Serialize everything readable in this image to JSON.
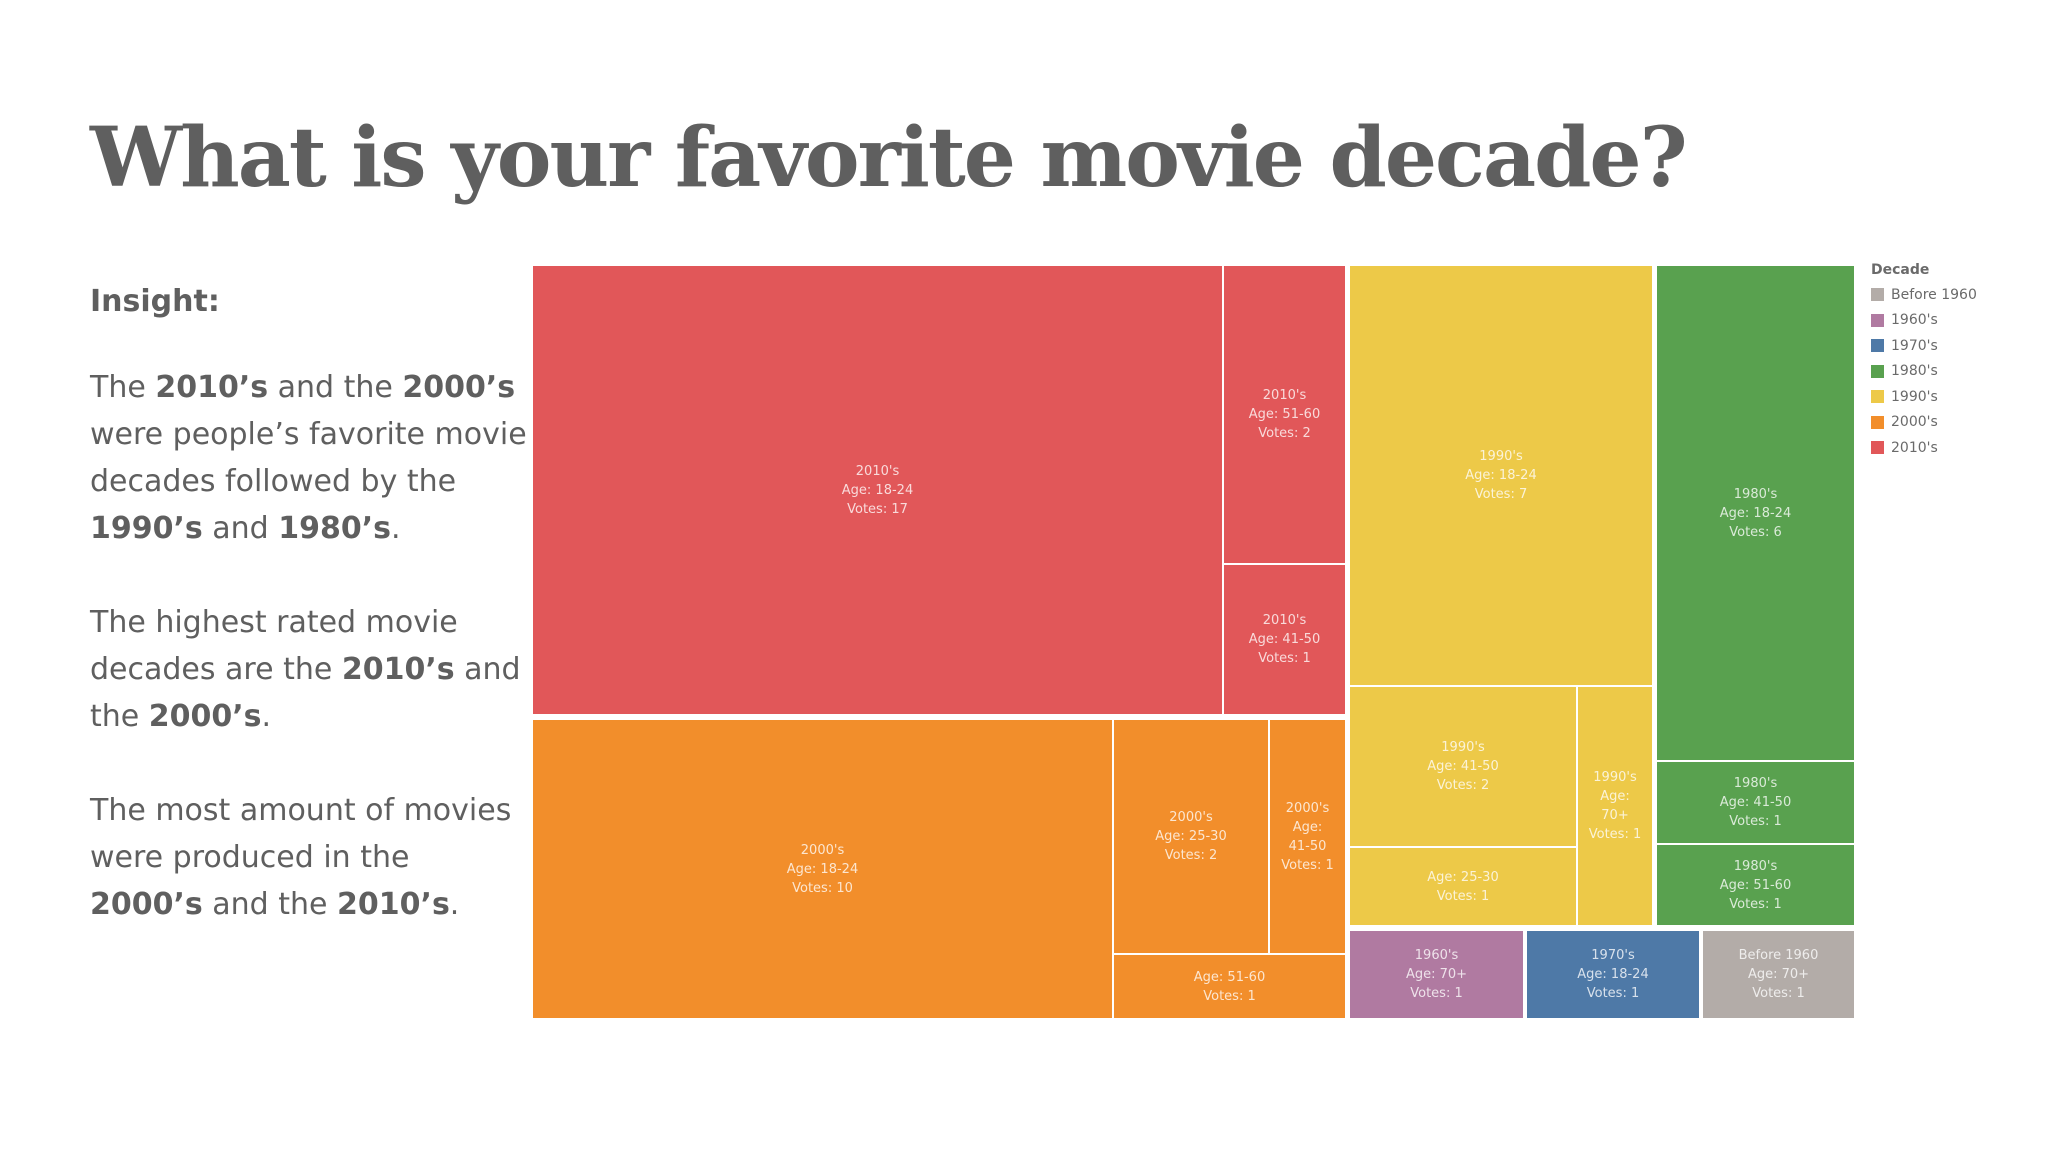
{
  "title": "What is your favorite movie decade?",
  "insight": {
    "heading": "Insight:",
    "paragraphs": [
      [
        {
          "t": "The ",
          "b": false
        },
        {
          "t": "2010’s",
          "b": true
        },
        {
          "t": " and the ",
          "b": false
        },
        {
          "t": "2000’s",
          "b": true
        },
        {
          "t": " were people’s favorite movie decades followed by the ",
          "b": false
        },
        {
          "t": "1990’s",
          "b": true
        },
        {
          "t": " and ",
          "b": false
        },
        {
          "t": "1980’s",
          "b": true
        },
        {
          "t": ".",
          "b": false
        }
      ],
      [
        {
          "t": "The highest rated movie decades are the ",
          "b": false
        },
        {
          "t": "2010’s",
          "b": true
        },
        {
          "t": " and the ",
          "b": false
        },
        {
          "t": "2000’s",
          "b": true
        },
        {
          "t": ".",
          "b": false
        }
      ],
      [
        {
          "t": "The most amount of movies were produced in the ",
          "b": false
        },
        {
          "t": "2000’s",
          "b": true
        },
        {
          "t": " and the ",
          "b": false
        },
        {
          "t": "2010’s",
          "b": true
        },
        {
          "t": ".",
          "b": false
        }
      ]
    ]
  },
  "legend": {
    "title": "Decade",
    "items": [
      {
        "label": "Before 1960",
        "color": "#b3aca8"
      },
      {
        "label": "1960's",
        "color": "#b07aa1"
      },
      {
        "label": "1970's",
        "color": "#4e79a7"
      },
      {
        "label": "1980's",
        "color": "#59a14f"
      },
      {
        "label": "1990's",
        "color": "#edc948"
      },
      {
        "label": "2000's",
        "color": "#f28e2b"
      },
      {
        "label": "2010's",
        "color": "#e15759"
      }
    ]
  },
  "chart_data": {
    "type": "treemap",
    "title": "What is your favorite movie decade?",
    "size_measure": "Votes",
    "series": [
      {
        "name": "2010's",
        "children": [
          {
            "lines": [
              "2010's",
              "Age: 18-24",
              "Votes: 17"
            ],
            "decade": "2010's",
            "age": "18-24",
            "votes": 17
          },
          {
            "lines": [
              "2010's",
              "Age: 51-60",
              "Votes: 2"
            ],
            "decade": "2010's",
            "age": "51-60",
            "votes": 2
          },
          {
            "lines": [
              "2010's",
              "Age: 41-50",
              "Votes: 1"
            ],
            "decade": "2010's",
            "age": "41-50",
            "votes": 1
          }
        ]
      },
      {
        "name": "2000's",
        "children": [
          {
            "lines": [
              "2000's",
              "Age: 18-24",
              "Votes: 10"
            ],
            "decade": "2000's",
            "age": "18-24",
            "votes": 10
          },
          {
            "lines": [
              "2000's",
              "Age: 25-30",
              "Votes: 2"
            ],
            "decade": "2000's",
            "age": "25-30",
            "votes": 2
          },
          {
            "lines": [
              "2000's",
              "Age:",
              "41-50",
              "Votes: 1"
            ],
            "decade": "2000's",
            "age": "41-50",
            "votes": 1
          },
          {
            "lines": [
              "Age: 51-60",
              "Votes: 1"
            ],
            "decade": "2000's",
            "age": "51-60",
            "votes": 1
          }
        ]
      },
      {
        "name": "1990's",
        "children": [
          {
            "lines": [
              "1990's",
              "Age: 18-24",
              "Votes: 7"
            ],
            "decade": "1990's",
            "age": "18-24",
            "votes": 7
          },
          {
            "lines": [
              "1990's",
              "Age: 41-50",
              "Votes: 2"
            ],
            "decade": "1990's",
            "age": "41-50",
            "votes": 2
          },
          {
            "lines": [
              "1990's",
              "Age:",
              "70+",
              "Votes: 1"
            ],
            "decade": "1990's",
            "age": "70+",
            "votes": 1
          },
          {
            "lines": [
              "Age: 25-30",
              "Votes: 1"
            ],
            "decade": "1990's",
            "age": "25-30",
            "votes": 1
          }
        ]
      },
      {
        "name": "1980's",
        "children": [
          {
            "lines": [
              "1980's",
              "Age: 18-24",
              "Votes: 6"
            ],
            "decade": "1980's",
            "age": "18-24",
            "votes": 6
          },
          {
            "lines": [
              "1980's",
              "Age: 41-50",
              "Votes: 1"
            ],
            "decade": "1980's",
            "age": "41-50",
            "votes": 1
          },
          {
            "lines": [
              "1980's",
              "Age: 51-60",
              "Votes: 1"
            ],
            "decade": "1980's",
            "age": "51-60",
            "votes": 1
          }
        ]
      },
      {
        "name": "1960's",
        "children": [
          {
            "lines": [
              "1960's",
              "Age: 70+",
              "Votes: 1"
            ],
            "decade": "1960's",
            "age": "70+",
            "votes": 1
          }
        ]
      },
      {
        "name": "1970's",
        "children": [
          {
            "lines": [
              "1970's",
              "Age: 18-24",
              "Votes: 1"
            ],
            "decade": "1970's",
            "age": "18-24",
            "votes": 1
          }
        ]
      },
      {
        "name": "Before 1960",
        "children": [
          {
            "lines": [
              "Before 1960",
              "Age: 70+",
              "Votes: 1"
            ],
            "decade": "Before 1960",
            "age": "70+",
            "votes": 1
          }
        ]
      }
    ]
  }
}
